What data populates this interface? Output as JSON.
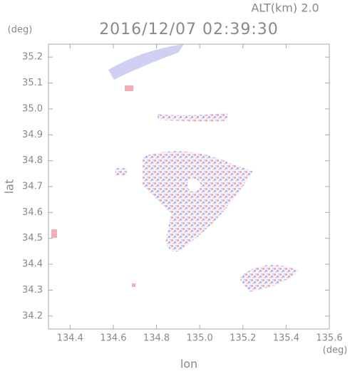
{
  "chart_data": {
    "type": "map",
    "title": "2016/12/07 02:39:30",
    "subtitle": "ALT(km) 2.0",
    "x_label": "lon",
    "y_label": "lat",
    "x_unit": "(deg)",
    "y_unit": "(deg)",
    "xlim": [
      134.3,
      135.6
    ],
    "ylim": [
      34.15,
      35.25
    ],
    "xticks": [
      134.4,
      134.6,
      134.8,
      {
        "value": 135.0,
        "label": "135.0"
      },
      135.2,
      135.4,
      135.6
    ],
    "yticks": [
      34.2,
      34.3,
      34.4,
      34.5,
      34.6,
      34.7,
      34.8,
      34.9,
      {
        "value": 35.0,
        "label": "35.0"
      },
      35.1,
      35.2
    ]
  }
}
